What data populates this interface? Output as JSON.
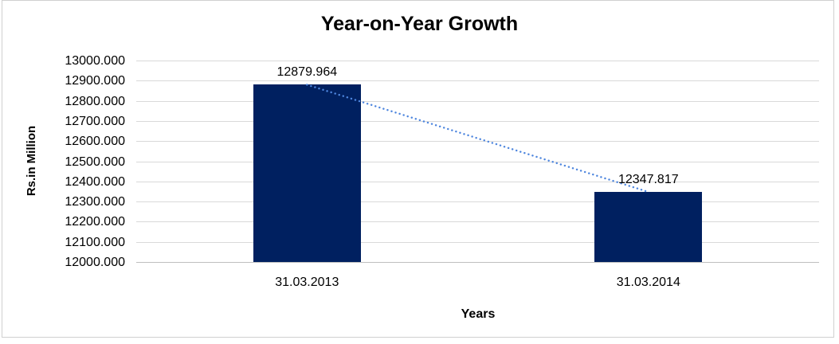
{
  "chart_data": {
    "type": "bar",
    "title": "Year-on-Year Growth",
    "xlabel": "Years",
    "ylabel": "Rs.in Million",
    "categories": [
      "31.03.2013",
      "31.03.2014"
    ],
    "series": [
      {
        "name": "Year-on-Year Growth",
        "values": [
          12879.964,
          12347.817
        ]
      }
    ],
    "data_labels": [
      "12879.964",
      "12347.817"
    ],
    "y_ticks": [
      "13000.000",
      "12900.000",
      "12800.000",
      "12700.000",
      "12600.000",
      "12500.000",
      "12400.000",
      "12300.000",
      "12200.000",
      "12100.000",
      "12000.000"
    ],
    "ylim": [
      12000,
      13000
    ],
    "grid": "horizontal",
    "legend": false,
    "trendline": {
      "style": "dotted",
      "from_point": 0,
      "to_point": 1
    },
    "colors": {
      "bar": "#002060",
      "trendline": "#4E86DE",
      "gridline": "#D9D9D9",
      "axis_line": "#BFBFBF",
      "chart_border": "#D0D0D0",
      "text": "#000000",
      "background": "#FFFFFF"
    }
  }
}
